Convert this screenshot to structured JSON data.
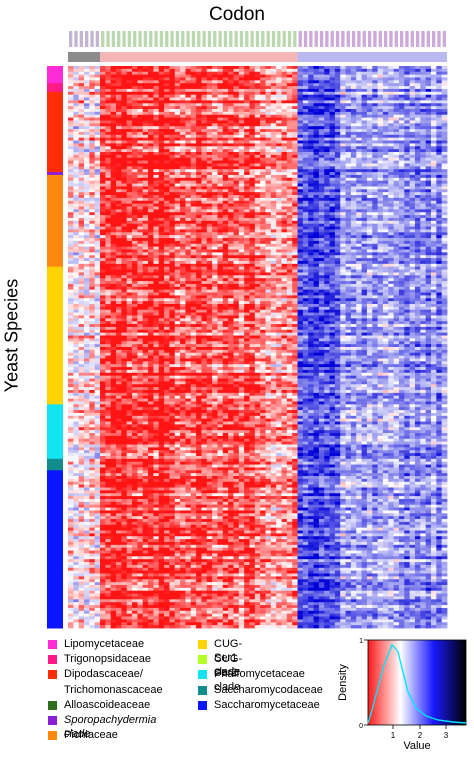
{
  "chart_data": {
    "type": "heatmap",
    "title": "Codon",
    "ylabel": "Yeast Species",
    "n_rows": 196,
    "column_groups": [
      {
        "color": "#8c8c8c",
        "n_cols": 6
      },
      {
        "color": "#f4b6b6",
        "n_cols": 37
      },
      {
        "color": "#b9b9f0",
        "n_cols": 28
      }
    ],
    "row_groups": [
      {
        "name": "Lipomycetaceae",
        "color": "#ff2bd6",
        "n_rows": 6
      },
      {
        "name": "Trigonopsidaceae",
        "color": "#ff1a86",
        "n_rows": 3
      },
      {
        "name": "Dipodascaceae/ Trichomonascaceae",
        "color": "#ff2d05",
        "n_rows": 28
      },
      {
        "name": "Alloascoideaceae",
        "color": "#2e6d1b",
        "n_rows": 0
      },
      {
        "name": "Sporopachydermia clade",
        "color": "#8b1fd6",
        "n_rows": 1
      },
      {
        "name": "Pichiaceae",
        "color": "#ff8810",
        "n_rows": 32
      },
      {
        "name": "CUG-Ser1 clade",
        "color": "#ffd400",
        "n_rows": 48
      },
      {
        "name": "CUG-Ser2 clade",
        "color": "#b3ff27",
        "n_rows": 0
      },
      {
        "name": "Phaffomycetaceae",
        "color": "#12e4f2",
        "n_rows": 19
      },
      {
        "name": "Saccharomycodaceae",
        "color": "#128c8c",
        "n_rows": 4
      },
      {
        "name": "Saccharomycetaceae",
        "color": "#0a16ff",
        "n_rows": 55
      }
    ],
    "color_key": {
      "xlabel": "Value",
      "ylabel": "Density",
      "ticks": [
        "1",
        "2",
        "3"
      ],
      "y_ticks": [
        "0",
        "1"
      ],
      "colors": [
        "#ff1a1a",
        "#ffffff",
        "#1a1aff",
        "#000000"
      ]
    }
  },
  "legend_col1": [
    {
      "label": "Lipomycetaceae",
      "color": "#ff2bd6",
      "italic": false
    },
    {
      "label": "Trigonopsidaceae",
      "color": "#ff1a86",
      "italic": false
    },
    {
      "label": "Dipodascaceae/",
      "color": "#ff2d05",
      "italic": false
    },
    {
      "label": "Trichomonascaceae",
      "color": "",
      "italic": false
    },
    {
      "label": "Alloascoideaceae",
      "color": "#2e6d1b",
      "italic": false
    },
    {
      "label": "Sporopachydermia clade",
      "color": "#8b1fd6",
      "italic": true
    },
    {
      "label": "Pichiaceae",
      "color": "#ff8810",
      "italic": false
    }
  ],
  "legend_col2": [
    {
      "label": "CUG-Ser1 clade",
      "color": "#ffd400",
      "italic": false
    },
    {
      "label": "CUG-Ser2 clade",
      "color": "#b3ff27",
      "italic": false
    },
    {
      "label": "Phaffomycetaceae",
      "color": "#12e4f2",
      "italic": false
    },
    {
      "label": "Saccharomycodaceae",
      "color": "#128c8c",
      "italic": false
    },
    {
      "label": "Saccharomycetaceae",
      "color": "#0a16ff",
      "italic": false
    }
  ]
}
